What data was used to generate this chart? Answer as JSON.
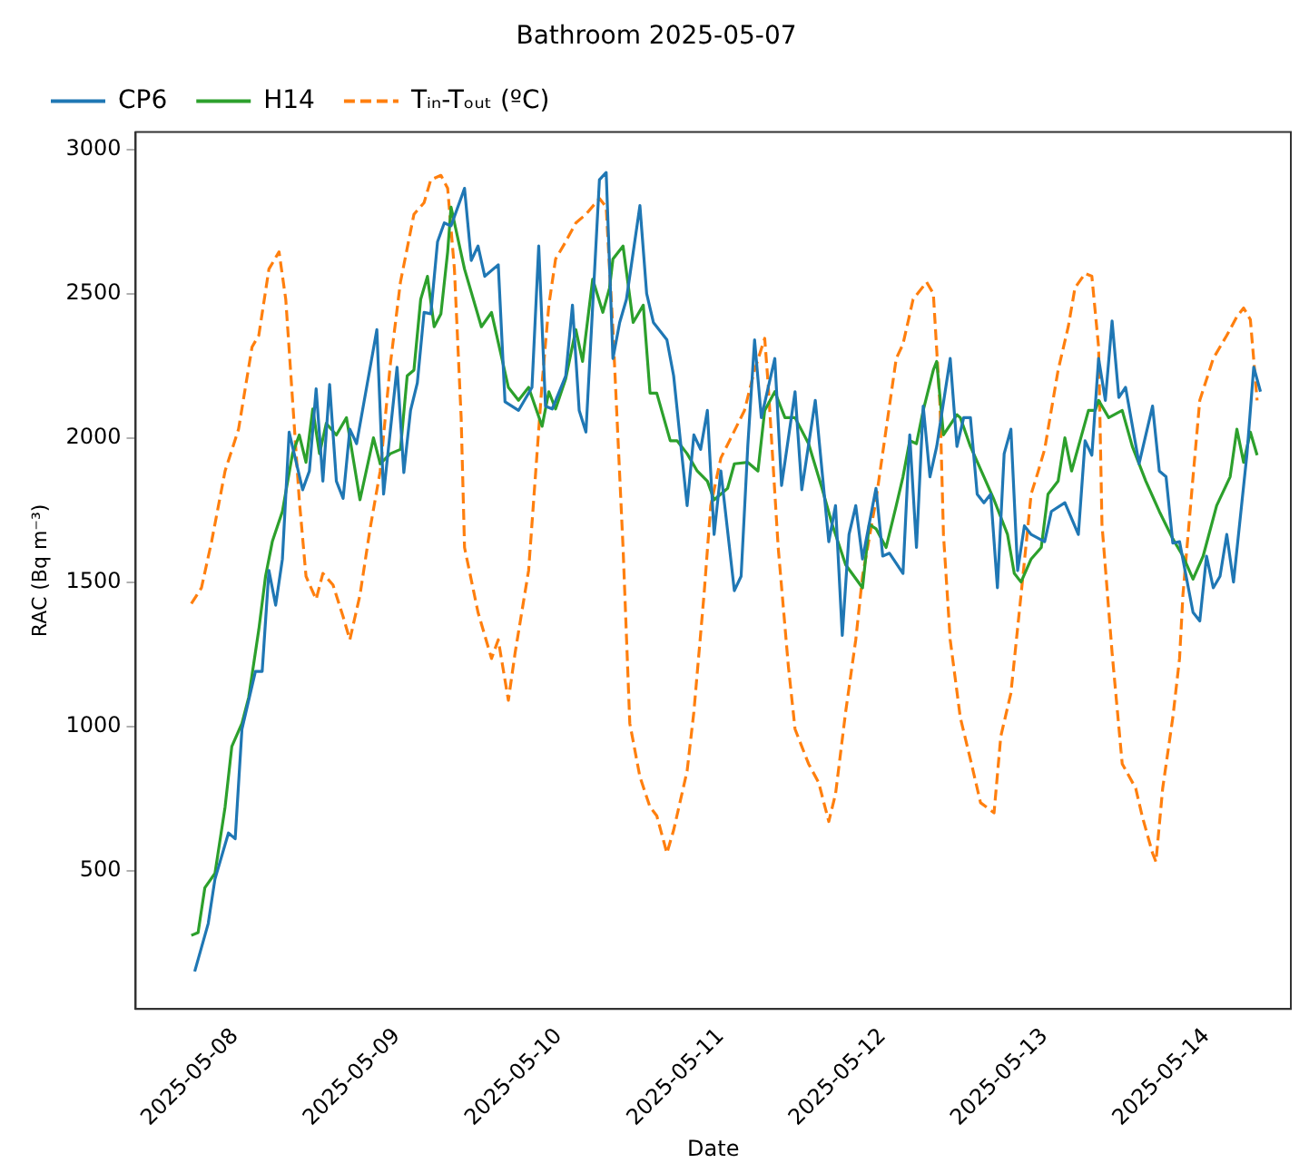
{
  "chart_data": {
    "type": "line",
    "title": "Bathroom 2025-05-07",
    "xlabel": "Date",
    "ylabel": "RAC (Bq m⁻³)",
    "legend": "top left",
    "grid": false,
    "marker": "none",
    "xlim": [
      "2025-05-07T09:15",
      "2025-05-14T12:30"
    ],
    "xticks": [
      "2025-05-08",
      "2025-05-09",
      "2025-05-10",
      "2025-05-11",
      "2025-05-12",
      "2025-05-13",
      "2025-05-14"
    ],
    "ylim": [
      20,
      3060
    ],
    "yticks": [
      500,
      1000,
      1500,
      2000,
      2500,
      3000
    ],
    "series": [
      {
        "name": "CP6",
        "color": "#1f77b4",
        "line_style": "solid",
        "x": [
          "2025-05-07T18:00",
          "2025-05-07T20:00",
          "2025-05-07T21:00",
          "2025-05-07T23:00",
          "2025-05-08T00:00",
          "2025-05-08T01:00",
          "2025-05-08T03:00",
          "2025-05-08T04:00",
          "2025-05-08T05:00",
          "2025-05-08T06:00",
          "2025-05-08T07:00",
          "2025-05-08T08:00",
          "2025-05-08T10:00",
          "2025-05-08T11:00",
          "2025-05-08T12:00",
          "2025-05-08T13:00",
          "2025-05-08T14:00",
          "2025-05-08T15:00",
          "2025-05-08T16:00",
          "2025-05-08T17:00",
          "2025-05-08T18:00",
          "2025-05-08T21:00",
          "2025-05-08T22:00",
          "2025-05-09T00:00",
          "2025-05-09T01:00",
          "2025-05-09T02:00",
          "2025-05-09T03:00",
          "2025-05-09T04:00",
          "2025-05-09T05:00",
          "2025-05-09T06:00",
          "2025-05-09T07:00",
          "2025-05-09T08:00",
          "2025-05-09T10:00",
          "2025-05-09T11:00",
          "2025-05-09T12:00",
          "2025-05-09T13:00",
          "2025-05-09T15:00",
          "2025-05-09T16:00",
          "2025-05-09T18:00",
          "2025-05-09T20:00",
          "2025-05-09T21:00",
          "2025-05-09T22:00",
          "2025-05-09T23:00",
          "2025-05-10T01:00",
          "2025-05-10T02:00",
          "2025-05-10T03:00",
          "2025-05-10T04:00",
          "2025-05-10T06:00",
          "2025-05-10T07:00",
          "2025-05-10T08:00",
          "2025-05-10T09:00",
          "2025-05-10T10:00",
          "2025-05-10T12:00",
          "2025-05-10T13:00",
          "2025-05-10T14:00",
          "2025-05-10T16:00",
          "2025-05-10T17:00",
          "2025-05-10T19:00",
          "2025-05-10T20:00",
          "2025-05-10T21:00",
          "2025-05-10T22:00",
          "2025-05-10T23:00",
          "2025-05-11T00:00",
          "2025-05-11T02:00",
          "2025-05-11T03:00",
          "2025-05-11T04:00",
          "2025-05-11T05:00",
          "2025-05-11T06:00",
          "2025-05-11T08:00",
          "2025-05-11T09:00",
          "2025-05-11T11:00",
          "2025-05-11T12:00",
          "2025-05-11T14:00",
          "2025-05-11T16:00",
          "2025-05-11T17:00",
          "2025-05-11T18:00",
          "2025-05-11T19:00",
          "2025-05-11T20:00",
          "2025-05-11T21:00",
          "2025-05-11T23:00",
          "2025-05-12T00:00",
          "2025-05-12T01:00",
          "2025-05-12T03:00",
          "2025-05-12T04:00",
          "2025-05-12T05:00",
          "2025-05-12T06:00",
          "2025-05-12T07:00",
          "2025-05-12T08:00",
          "2025-05-12T10:00",
          "2025-05-12T11:00",
          "2025-05-12T12:00",
          "2025-05-12T13:00",
          "2025-05-12T14:00",
          "2025-05-12T15:00",
          "2025-05-12T16:00",
          "2025-05-12T17:00",
          "2025-05-12T18:00",
          "2025-05-12T19:00",
          "2025-05-12T20:00",
          "2025-05-12T21:00",
          "2025-05-12T22:00",
          "2025-05-13T00:00",
          "2025-05-13T01:00",
          "2025-05-13T03:00",
          "2025-05-13T05:00",
          "2025-05-13T06:00",
          "2025-05-13T07:00",
          "2025-05-13T08:00",
          "2025-05-13T09:00",
          "2025-05-13T10:00",
          "2025-05-13T11:00",
          "2025-05-13T12:00",
          "2025-05-13T14:00",
          "2025-05-13T16:00",
          "2025-05-13T17:00",
          "2025-05-13T18:00",
          "2025-05-13T19:00",
          "2025-05-13T20:00",
          "2025-05-13T22:00",
          "2025-05-13T23:00",
          "2025-05-14T00:00",
          "2025-05-14T01:00",
          "2025-05-14T02:00",
          "2025-05-14T03:00",
          "2025-05-14T04:00",
          "2025-05-14T06:00",
          "2025-05-14T07:00",
          "2025-05-14T08:00"
        ],
        "values": [
          150,
          316,
          470,
          630,
          610,
          990,
          1190,
          1190,
          1540,
          1420,
          1580,
          2020,
          1820,
          1885,
          2170,
          1850,
          2185,
          1850,
          1790,
          2030,
          1980,
          2375,
          1805,
          2245,
          1880,
          2095,
          2190,
          2435,
          2430,
          2680,
          2745,
          2735,
          2865,
          2615,
          2665,
          2560,
          2600,
          2125,
          2095,
          2175,
          2665,
          2110,
          2100,
          2215,
          2460,
          2095,
          2020,
          2895,
          2920,
          2275,
          2400,
          2480,
          2805,
          2500,
          2400,
          2340,
          2215,
          1765,
          2010,
          1960,
          2095,
          1665,
          1885,
          1470,
          1520,
          1975,
          2340,
          2070,
          2275,
          1835,
          2160,
          1820,
          2130,
          1640,
          1765,
          1315,
          1665,
          1765,
          1580,
          1825,
          1590,
          1600,
          1530,
          2010,
          1620,
          2110,
          1865,
          1970,
          2275,
          1970,
          2070,
          2070,
          1805,
          1775,
          1805,
          1480,
          1945,
          2030,
          1540,
          1695,
          1665,
          1640,
          1745,
          1775,
          1665,
          1990,
          1940,
          2275,
          2130,
          2405,
          2140,
          2175,
          1910,
          2110,
          1885,
          1865,
          1635,
          1640,
          1395,
          1365,
          1590,
          1480,
          1520,
          1665,
          1500,
          1945,
          2245,
          2160
        ]
      },
      {
        "name": "H14",
        "color": "#2ca02c",
        "line_style": "solid",
        "x": [
          "2025-05-07T17:30",
          "2025-05-07T18:30",
          "2025-05-07T19:30",
          "2025-05-07T21:00",
          "2025-05-07T22:30",
          "2025-05-07T23:30",
          "2025-05-08T01:00",
          "2025-05-08T02:00",
          "2025-05-08T03:30",
          "2025-05-08T04:30",
          "2025-05-08T05:30",
          "2025-05-08T07:00",
          "2025-05-08T08:30",
          "2025-05-08T09:30",
          "2025-05-08T10:30",
          "2025-05-08T11:30",
          "2025-05-08T12:30",
          "2025-05-08T13:30",
          "2025-05-08T15:00",
          "2025-05-08T16:30",
          "2025-05-08T18:30",
          "2025-05-08T20:30",
          "2025-05-08T21:30",
          "2025-05-08T23:00",
          "2025-05-09T00:30",
          "2025-05-09T01:30",
          "2025-05-09T02:30",
          "2025-05-09T03:30",
          "2025-05-09T04:30",
          "2025-05-09T05:30",
          "2025-05-09T06:30",
          "2025-05-09T07:30",
          "2025-05-09T08:00",
          "2025-05-09T10:00",
          "2025-05-09T12:30",
          "2025-05-09T14:00",
          "2025-05-09T16:30",
          "2025-05-09T18:00",
          "2025-05-09T19:30",
          "2025-05-09T21:30",
          "2025-05-09T22:30",
          "2025-05-09T23:30",
          "2025-05-10T01:00",
          "2025-05-10T02:30",
          "2025-05-10T03:30",
          "2025-05-10T05:00",
          "2025-05-10T06:30",
          "2025-05-10T07:30",
          "2025-05-10T08:00",
          "2025-05-10T09:30",
          "2025-05-10T11:00",
          "2025-05-10T12:30",
          "2025-05-10T13:30",
          "2025-05-10T14:30",
          "2025-05-10T16:30",
          "2025-05-10T17:30",
          "2025-05-10T19:00",
          "2025-05-10T20:30",
          "2025-05-10T22:00",
          "2025-05-10T23:00",
          "2025-05-11T01:00",
          "2025-05-11T02:00",
          "2025-05-11T04:00",
          "2025-05-11T05:30",
          "2025-05-11T06:30",
          "2025-05-11T08:00",
          "2025-05-11T09:30",
          "2025-05-11T11:00",
          "2025-05-11T13:00",
          "2025-05-11T15:00",
          "2025-05-11T16:30",
          "2025-05-11T18:30",
          "2025-05-11T21:00",
          "2025-05-11T22:00",
          "2025-05-11T23:00",
          "2025-05-12T00:30",
          "2025-05-12T02:00",
          "2025-05-12T03:00",
          "2025-05-12T04:00",
          "2025-05-12T05:00",
          "2025-05-12T06:00",
          "2025-05-12T07:30",
          "2025-05-12T08:00",
          "2025-05-12T09:00",
          "2025-05-12T11:00",
          "2025-05-12T11:30",
          "2025-05-12T13:00",
          "2025-05-12T15:00",
          "2025-05-12T16:30",
          "2025-05-12T18:30",
          "2025-05-12T19:30",
          "2025-05-12T20:30",
          "2025-05-12T22:00",
          "2025-05-12T23:30",
          "2025-05-13T00:30",
          "2025-05-13T02:00",
          "2025-05-13T03:00",
          "2025-05-13T04:00",
          "2025-05-13T06:30",
          "2025-05-13T07:30",
          "2025-05-13T08:00",
          "2025-05-13T09:30",
          "2025-05-13T11:30",
          "2025-05-13T13:00",
          "2025-05-13T15:00",
          "2025-05-13T17:00",
          "2025-05-13T19:00",
          "2025-05-13T20:30",
          "2025-05-13T22:00",
          "2025-05-13T23:30",
          "2025-05-14T01:30",
          "2025-05-14T03:30",
          "2025-05-14T04:30",
          "2025-05-14T05:30",
          "2025-05-14T06:30",
          "2025-05-14T07:30"
        ],
        "values": [
          275,
          285,
          440,
          490,
          720,
          930,
          1010,
          1100,
          1335,
          1520,
          1640,
          1745,
          1945,
          2010,
          1915,
          2100,
          1945,
          2050,
          2010,
          2070,
          1785,
          2000,
          1910,
          1945,
          1960,
          2215,
          2235,
          2480,
          2560,
          2385,
          2430,
          2645,
          2800,
          2585,
          2385,
          2435,
          2175,
          2130,
          2175,
          2040,
          2160,
          2100,
          2205,
          2375,
          2265,
          2550,
          2435,
          2520,
          2620,
          2665,
          2400,
          2460,
          2155,
          2155,
          1990,
          1990,
          1945,
          1885,
          1850,
          1785,
          1825,
          1910,
          1915,
          1885,
          2095,
          2160,
          2070,
          2070,
          1980,
          1825,
          1700,
          1560,
          1480,
          1700,
          1685,
          1620,
          1765,
          1865,
          1990,
          1980,
          2095,
          2235,
          2265,
          2010,
          2080,
          2070,
          1970,
          1865,
          1785,
          1665,
          1530,
          1500,
          1580,
          1620,
          1805,
          1850,
          2000,
          1885,
          2095,
          2095,
          2130,
          2070,
          2095,
          1970,
          1850,
          1745,
          1650,
          1590,
          1510,
          1590,
          1765,
          1865,
          2030,
          1915,
          2020,
          1940
        ]
      },
      {
        "name": "Tᵢₙ-Tₒᵤₜ (ºC)",
        "color": "#ff7f0e",
        "line_style": "dashed",
        "x": [
          "2025-05-07T17:30",
          "2025-05-07T19:00",
          "2025-05-07T20:30",
          "2025-05-07T22:30",
          "2025-05-08T00:30",
          "2025-05-08T02:30",
          "2025-05-08T03:30",
          "2025-05-08T05:00",
          "2025-05-08T06:30",
          "2025-05-08T07:30",
          "2025-05-08T09:30",
          "2025-05-08T10:30",
          "2025-05-08T12:00",
          "2025-05-08T13:00",
          "2025-05-08T14:30",
          "2025-05-08T16:00",
          "2025-05-08T17:00",
          "2025-05-08T18:30",
          "2025-05-08T20:00",
          "2025-05-08T21:30",
          "2025-05-08T23:00",
          "2025-05-09T00:30",
          "2025-05-09T02:30",
          "2025-05-09T04:00",
          "2025-05-09T05:00",
          "2025-05-09T06:30",
          "2025-05-09T07:30",
          "2025-05-09T08:30",
          "2025-05-09T09:30",
          "2025-05-09T10:00",
          "2025-05-09T12:00",
          "2025-05-09T14:00",
          "2025-05-09T15:00",
          "2025-05-09T16:30",
          "2025-05-09T17:30",
          "2025-05-09T19:30",
          "2025-05-09T20:30",
          "2025-05-09T21:30",
          "2025-05-09T22:30",
          "2025-05-09T23:30",
          "2025-05-10T01:00",
          "2025-05-10T02:30",
          "2025-05-10T04:00",
          "2025-05-10T06:00",
          "2025-05-10T07:00",
          "2025-05-10T08:00",
          "2025-05-10T09:30",
          "2025-05-10T10:30",
          "2025-05-10T12:00",
          "2025-05-10T13:30",
          "2025-05-10T14:30",
          "2025-05-10T16:00",
          "2025-05-10T17:00",
          "2025-05-10T19:00",
          "2025-05-10T20:00",
          "2025-05-10T21:30",
          "2025-05-10T22:30",
          "2025-05-11T00:00",
          "2025-05-11T01:30",
          "2025-05-11T03:30",
          "2025-05-11T05:00",
          "2025-05-11T06:30",
          "2025-05-11T07:00",
          "2025-05-11T08:30",
          "2025-05-11T10:00",
          "2025-05-11T11:00",
          "2025-05-11T13:00",
          "2025-05-11T14:30",
          "2025-05-11T16:00",
          "2025-05-11T17:00",
          "2025-05-11T18:30",
          "2025-05-11T20:00",
          "2025-05-11T21:00",
          "2025-05-11T23:00",
          "2025-05-12T00:30",
          "2025-05-12T02:00",
          "2025-05-12T03:00",
          "2025-05-12T04:30",
          "2025-05-12T06:30",
          "2025-05-12T07:30",
          "2025-05-12T08:30",
          "2025-05-12T09:00",
          "2025-05-12T10:00",
          "2025-05-12T11:30",
          "2025-05-12T13:00",
          "2025-05-12T14:30",
          "2025-05-12T16:30",
          "2025-05-12T17:30",
          "2025-05-12T19:00",
          "2025-05-12T20:30",
          "2025-05-12T22:00",
          "2025-05-12T23:00",
          "2025-05-13T00:00",
          "2025-05-13T02:00",
          "2025-05-13T03:30",
          "2025-05-13T04:30",
          "2025-05-13T06:00",
          "2025-05-13T07:00",
          "2025-05-13T08:00",
          "2025-05-13T08:30",
          "2025-05-13T10:00",
          "2025-05-13T11:30",
          "2025-05-13T13:30",
          "2025-05-13T14:30",
          "2025-05-13T16:00",
          "2025-05-13T16:30",
          "2025-05-13T17:30",
          "2025-05-13T19:00",
          "2025-05-13T20:00",
          "2025-05-13T20:30",
          "2025-05-13T22:00",
          "2025-05-13T23:00",
          "2025-05-14T01:00",
          "2025-05-14T03:00",
          "2025-05-14T04:30",
          "2025-05-14T05:30",
          "2025-05-14T06:30",
          "2025-05-14T07:30"
        ],
        "values": [
          1425,
          1480,
          1640,
          1885,
          2030,
          2315,
          2355,
          2585,
          2645,
          2480,
          1785,
          1520,
          1440,
          1530,
          1490,
          1380,
          1300,
          1455,
          1685,
          1885,
          2255,
          2540,
          2775,
          2815,
          2895,
          2910,
          2865,
          2585,
          2070,
          1620,
          1395,
          1235,
          1300,
          1090,
          1255,
          1540,
          1865,
          2190,
          2460,
          2620,
          2680,
          2745,
          2775,
          2830,
          2800,
          2375,
          1620,
          1010,
          825,
          720,
          690,
          560,
          640,
          845,
          1050,
          1455,
          1765,
          1930,
          2000,
          2095,
          2235,
          2345,
          2190,
          1620,
          1210,
          990,
          870,
          805,
          670,
          765,
          1050,
          1300,
          1520,
          1785,
          2030,
          2275,
          2325,
          2480,
          2540,
          2500,
          2110,
          1665,
          1300,
          1030,
          885,
          735,
          700,
          965,
          1115,
          1455,
          1805,
          1880,
          1960,
          2235,
          2385,
          2520,
          2570,
          2560,
          2315,
          1700,
          1255,
          870,
          785,
          685,
          560,
          530,
          785,
          1030,
          1235,
          1455,
          1865,
          2130,
          2275,
          2355,
          2420,
          2450,
          2410,
          2130
        ]
      }
    ]
  }
}
